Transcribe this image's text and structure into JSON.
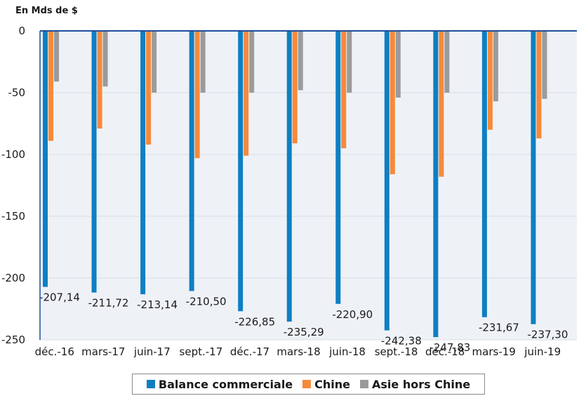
{
  "colors": {
    "plot_bg": "#eef2f7",
    "axis": "#1f4e9c",
    "grid": "#d9dee5"
  },
  "chart_data": {
    "type": "bar",
    "unit_label": "En Mds de $",
    "ylim": [
      -250,
      0
    ],
    "yticks": [
      0,
      -50,
      -100,
      -150,
      -200,
      -250
    ],
    "categories": [
      "déc.-16",
      "mars-17",
      "juin-17",
      "sept.-17",
      "déc.-17",
      "mars-18",
      "juin-18",
      "sept.-18",
      "déc.-18",
      "mars-19",
      "juin-19"
    ],
    "series": [
      {
        "name": "Balance commerciale",
        "color": "#0f7fc2",
        "values": [
          -207.14,
          -211.72,
          -213.14,
          -210.5,
          -226.85,
          -235.29,
          -220.9,
          -242.38,
          -247.83,
          -231.67,
          -237.3
        ],
        "labels": [
          "-207,14",
          "-211,72",
          "-213,14",
          "-210,50",
          "-226,85",
          "-235,29",
          "-220,90",
          "-242,38",
          "-247,83",
          "-231,67",
          "-237,30"
        ]
      },
      {
        "name": "Chine",
        "color": "#f58a3c",
        "values": [
          -89,
          -79,
          -92,
          -103,
          -101,
          -91,
          -95,
          -116,
          -118,
          -80,
          -87
        ]
      },
      {
        "name": "Asie hors Chine",
        "color": "#9b9b9b",
        "values": [
          -41,
          -45,
          -50,
          -50,
          -50,
          -48,
          -50,
          -54,
          -50,
          -57,
          -55
        ]
      }
    ],
    "grid": true,
    "legend_position": "bottom"
  }
}
